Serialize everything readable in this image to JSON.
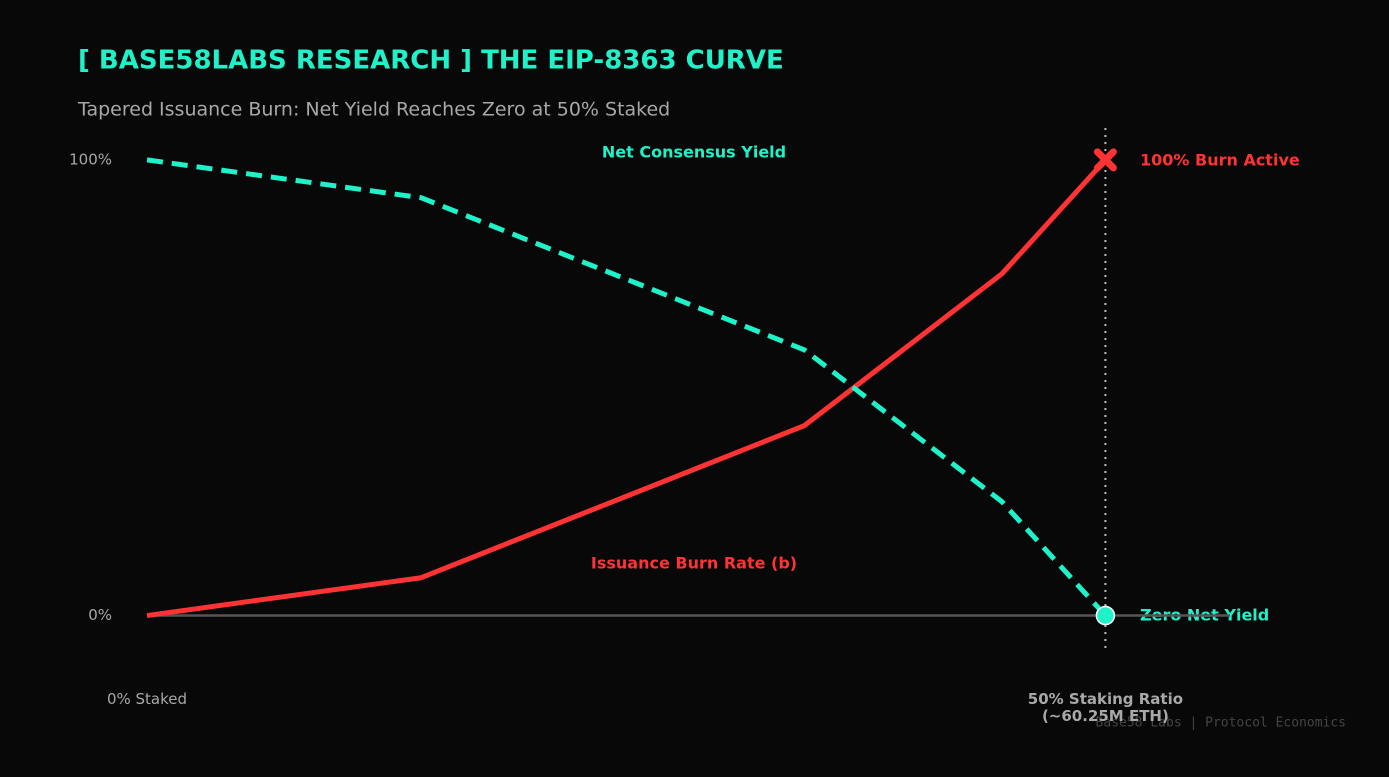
{
  "chart_data": {
    "type": "line",
    "title": "[ BASE58LABS RESEARCH ] THE EIP-8363 CURVE",
    "subtitle": "Tapered Issuance Burn: Net Yield Reaches Zero at 50% Staked",
    "x": [
      0,
      14.3,
      34.3,
      44.6,
      50
    ],
    "series": [
      {
        "name": "Issuance Burn Rate (b)",
        "color": "#ff3333",
        "values": [
          0,
          8.3,
          41.7,
          75,
          100
        ]
      },
      {
        "name": "Net Consensus Yield",
        "color": "#1ff2c9",
        "values": [
          100,
          91.7,
          58.3,
          25,
          0
        ]
      }
    ],
    "xlim": [
      0,
      56.5
    ],
    "ylim": [
      -8,
      107
    ],
    "xticks": [
      {
        "value": 0,
        "label": "0% Staked"
      },
      {
        "value": 50,
        "label": "50% Staking Ratio\n(~60.25M ETH)"
      }
    ],
    "yticks": [
      {
        "value": 0,
        "label": "0%"
      },
      {
        "value": 100,
        "label": "100%"
      }
    ],
    "baseline": 0,
    "reference_x": 50,
    "annotations": [
      "100% Burn Active",
      "Zero Net Yield"
    ],
    "footer": "Base58 Labs | Protocol Economics",
    "grid": false
  }
}
